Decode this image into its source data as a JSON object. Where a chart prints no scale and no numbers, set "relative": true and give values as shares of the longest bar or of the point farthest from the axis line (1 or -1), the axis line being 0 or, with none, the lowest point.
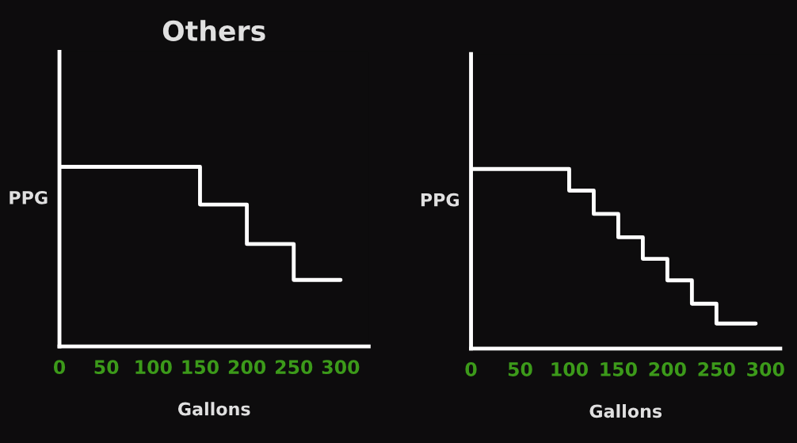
{
  "chart_data": [
    {
      "type": "step",
      "title": "Others",
      "xlabel": "Gallons",
      "ylabel": "PPG",
      "relative": true,
      "xlim": [
        0,
        330
      ],
      "xticks": [
        0,
        50,
        100,
        150,
        200,
        250,
        300
      ],
      "tick_labels": "x",
      "grid": false,
      "legend": false,
      "series": [
        {
          "color": "#ffffff",
          "x": [
            0,
            150,
            200,
            250,
            300
          ],
          "values": [
            1,
            0.79,
            0.57,
            0.37,
            0.37
          ]
        }
      ]
    },
    {
      "type": "step",
      "xlabel": "Gallons",
      "ylabel": "PPG",
      "relative": true,
      "xlim": [
        0,
        315
      ],
      "xticks": [
        0,
        50,
        100,
        150,
        200,
        250,
        300
      ],
      "tick_labels": "x",
      "grid": false,
      "legend": false,
      "series": [
        {
          "color": "#ffffff",
          "x": [
            0,
            100,
            125,
            150,
            175,
            200,
            225,
            250,
            290
          ],
          "values": [
            1,
            0.88,
            0.75,
            0.62,
            0.5,
            0.38,
            0.25,
            0.14,
            0.14
          ]
        }
      ]
    }
  ]
}
